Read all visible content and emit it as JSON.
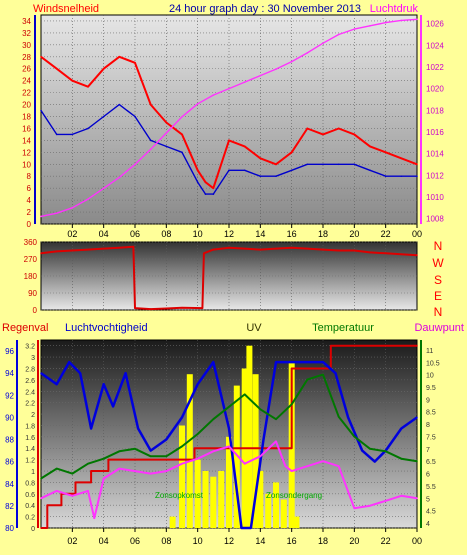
{
  "header": {
    "left_title": "Windsnelheid",
    "center_title": "24 hour graph day : 30 November 2013",
    "right_title": "Luchtdruk"
  },
  "colors": {
    "background": "#ffff99",
    "wind_gust": "#ff0000",
    "wind_avg": "#0000cc",
    "pressure": "#ff33ff",
    "direction": "#dd0000",
    "rain": "#dd0000",
    "humidity": "#0000dd",
    "uv": "#ffff00",
    "temperature": "#007700",
    "dewpoint": "#ff33ff",
    "solar": "#00aa00"
  },
  "compass_labels": [
    "N",
    "W",
    "S",
    "E",
    "N"
  ],
  "panel3_labels": {
    "rain": "Regenval",
    "humidity": "Luchtvochtigheid",
    "uv": "UV",
    "temperature": "Temperatuur",
    "dewpoint": "Dauwpunt"
  },
  "solar_labels": {
    "rise": "Zonsopkomst",
    "set": "Zonsondergang"
  },
  "chart_data": [
    {
      "type": "line",
      "name": "wind-and-pressure",
      "x_ticks": [
        "02",
        "04",
        "06",
        "08",
        "10",
        "12",
        "14",
        "16",
        "18",
        "20",
        "22",
        "00"
      ],
      "left_axis": {
        "ticks": [
          0,
          2,
          4,
          6,
          8,
          10,
          12,
          14,
          16,
          18,
          20,
          22,
          24,
          26,
          28,
          30,
          32,
          34
        ],
        "range": [
          0,
          35
        ]
      },
      "right_axis": {
        "ticks": [
          1008,
          1010,
          1012,
          1014,
          1016,
          1018,
          1020,
          1022,
          1024,
          1026
        ],
        "range": [
          1007.5,
          1026.8
        ]
      },
      "series": [
        {
          "key": "gust",
          "axis": "left",
          "x": [
            0,
            1,
            2,
            3,
            4,
            5,
            6,
            7,
            8,
            9,
            10,
            10.5,
            11,
            12,
            13,
            14,
            15,
            16,
            17,
            18,
            19,
            20,
            21,
            22,
            23,
            24
          ],
          "y": [
            28,
            26,
            24,
            23,
            26,
            28,
            27,
            20,
            17,
            15,
            9,
            7,
            6,
            14,
            13,
            11,
            10,
            12,
            16,
            15,
            16,
            15,
            13,
            12,
            11,
            10
          ]
        },
        {
          "key": "average",
          "axis": "left",
          "x": [
            0,
            1,
            2,
            3,
            4,
            5,
            6,
            7,
            8,
            9,
            10,
            10.5,
            11,
            12,
            13,
            14,
            15,
            16,
            17,
            18,
            19,
            20,
            21,
            22,
            23,
            24
          ],
          "y": [
            19,
            15,
            15,
            16,
            18,
            20,
            18,
            14,
            13,
            12,
            7,
            5,
            5,
            9,
            9,
            8,
            8,
            9,
            10,
            10,
            10,
            10,
            9,
            8,
            8,
            8
          ]
        },
        {
          "key": "pressure",
          "axis": "right",
          "x": [
            0,
            1,
            2,
            3,
            4,
            5,
            6,
            7,
            8,
            9,
            10,
            11,
            12,
            13,
            14,
            15,
            16,
            17,
            18,
            19,
            20,
            21,
            22,
            23,
            24
          ],
          "y": [
            1008.2,
            1008.5,
            1009.0,
            1009.8,
            1010.8,
            1011.8,
            1013.0,
            1014.4,
            1015.9,
            1017.4,
            1018.6,
            1019.4,
            1020.0,
            1020.6,
            1021.2,
            1021.8,
            1022.5,
            1023.3,
            1024.2,
            1025.0,
            1025.5,
            1025.8,
            1026.1,
            1026.3,
            1026.4
          ]
        }
      ]
    },
    {
      "type": "line",
      "name": "wind-direction",
      "x_ticks": [
        "02",
        "04",
        "06",
        "08",
        "10",
        "12",
        "14",
        "16",
        "18",
        "20",
        "22",
        "00"
      ],
      "y_axis": {
        "ticks": [
          0,
          90,
          180,
          270,
          360
        ],
        "range": [
          0,
          360
        ]
      },
      "series": [
        {
          "key": "direction",
          "x": [
            0,
            1,
            2,
            3,
            4,
            5,
            5.9,
            6.0,
            7,
            8,
            9,
            10.3,
            10.4,
            11,
            12,
            13,
            14,
            15,
            16,
            17,
            18,
            19,
            20,
            21,
            22,
            23,
            24
          ],
          "y": [
            300,
            310,
            315,
            320,
            325,
            330,
            335,
            10,
            5,
            8,
            12,
            10,
            300,
            320,
            330,
            325,
            320,
            325,
            330,
            325,
            320,
            315,
            315,
            305,
            300,
            295,
            290
          ]
        }
      ]
    },
    {
      "type": "line",
      "name": "rain-humidity-uv-temperature",
      "x_ticks": [
        "02",
        "04",
        "06",
        "08",
        "10",
        "12",
        "14",
        "16",
        "18",
        "20",
        "22",
        "00"
      ],
      "humidity_axis": {
        "ticks": [
          80,
          82,
          84,
          86,
          88,
          90,
          92,
          94,
          96
        ],
        "range": [
          80,
          97
        ]
      },
      "rain_axis": {
        "ticks": [
          0,
          0.2,
          0.4,
          0.6,
          0.8,
          1,
          1.2,
          1.4,
          1.6,
          1.8,
          2,
          2.2,
          2.4,
          2.6,
          2.8,
          3,
          3.2
        ],
        "range": [
          0,
          3.3
        ]
      },
      "temperature_axis": {
        "ticks": [
          4,
          4.5,
          5,
          5.5,
          6,
          6.5,
          7,
          7.5,
          8,
          8.5,
          9,
          9.5,
          10,
          10.5,
          11
        ],
        "range": [
          3.8,
          11.4
        ]
      },
      "series": [
        {
          "key": "rain",
          "axis": "rain",
          "step": true,
          "x": [
            0,
            0.4,
            1.3,
            2.2,
            3.2,
            4.3,
            5.8,
            7.5,
            9.8,
            12.0,
            16.0,
            18.5,
            24
          ],
          "y": [
            0,
            0.4,
            0.6,
            0.8,
            1.0,
            1.2,
            1.2,
            1.2,
            1.4,
            1.4,
            2.8,
            3.2,
            3.2
          ]
        },
        {
          "key": "humidity",
          "axis": "humidity",
          "x": [
            0,
            1,
            1.8,
            2.5,
            3.2,
            4,
            4.6,
            5.4,
            6.2,
            7,
            8,
            9,
            10,
            11,
            12,
            12.8,
            13.4,
            14.2,
            15,
            16,
            17,
            18,
            18.8,
            19.6,
            20.5,
            21.3,
            22,
            23,
            24
          ],
          "y": [
            94,
            93,
            95,
            94,
            89,
            93,
            91,
            94,
            89,
            87,
            88,
            90,
            93,
            95,
            89,
            80,
            80,
            88,
            95,
            95,
            95,
            95,
            94,
            90,
            87,
            86,
            87,
            89,
            90
          ]
        },
        {
          "key": "uv",
          "axis": "rain",
          "bars": true,
          "x": [
            8.4,
            9,
            9.5,
            10,
            10.5,
            11,
            11.5,
            12,
            12.5,
            13,
            13.3,
            13.7,
            14,
            14.5,
            15,
            15.5,
            16,
            16.3
          ],
          "y": [
            0.2,
            1.8,
            2.7,
            1.2,
            1.0,
            0.9,
            1.0,
            1.6,
            2.5,
            2.8,
            3.2,
            2.7,
            1.0,
            0.6,
            0.8,
            0.5,
            2.9,
            0.2
          ]
        },
        {
          "key": "temperature",
          "axis": "temperature",
          "x": [
            0,
            1,
            2,
            3,
            4,
            5,
            6,
            7,
            8,
            9,
            10,
            11,
            12,
            13,
            14,
            15,
            16,
            17,
            18,
            19,
            20,
            21,
            22,
            23,
            24
          ],
          "y": [
            5.8,
            6.2,
            6.0,
            6.4,
            6.6,
            6.9,
            7.0,
            6.7,
            6.7,
            7.1,
            7.6,
            8.2,
            8.7,
            9.2,
            8.6,
            8.2,
            8.8,
            9.8,
            10.0,
            8.3,
            7.5,
            7.0,
            6.9,
            6.6,
            6.5
          ]
        },
        {
          "key": "dewpoint",
          "axis": "temperature",
          "x": [
            0,
            1,
            2,
            3,
            3.4,
            4,
            5,
            6,
            7,
            8,
            9,
            10,
            11,
            12,
            13,
            14,
            15,
            15.6,
            16,
            17,
            18,
            19,
            20,
            21,
            22,
            23,
            24
          ],
          "y": [
            5.0,
            5.3,
            5.1,
            5.3,
            4.2,
            5.8,
            6.2,
            6.1,
            6.0,
            6.1,
            6.4,
            6.6,
            6.9,
            7.1,
            6.4,
            6.7,
            7.3,
            6.3,
            6.1,
            6.3,
            6.5,
            6.3,
            4.6,
            4.7,
            4.9,
            5.1,
            5.0
          ]
        }
      ]
    }
  ]
}
